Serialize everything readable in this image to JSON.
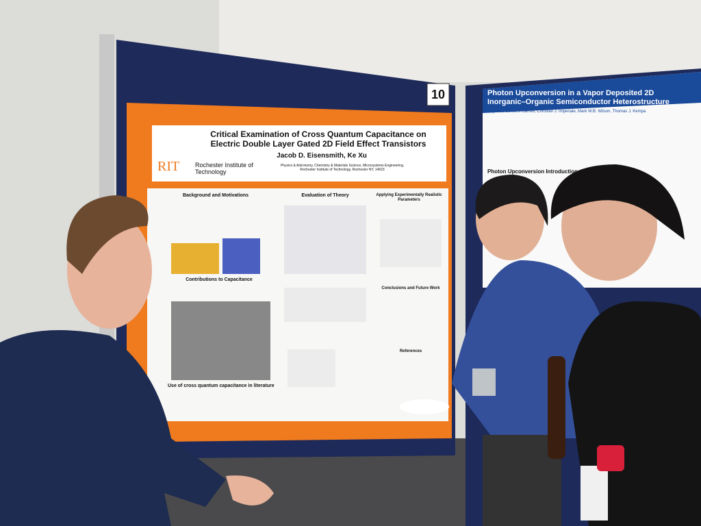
{
  "scene": {
    "board_number": "10",
    "left_poster": {
      "title": "Critical Examination of Cross Quantum Capacitance on Electric Double Layer Gated 2D Field Effect Transistors",
      "authors": "Jacob D. Eisensmith, Ke Xu",
      "logo": "RIT",
      "institution": "Rochester Institute of Technology",
      "affiliation": "Physics & Astronomy, Chemistry & Materials Science, Microsystems Engineering, Rochester Institute of Technology, Rochester NY, 14623",
      "sections": [
        "Background and Motivations",
        "Contributions to Capacitance",
        "Use of cross quantum capacitance in literature",
        "Evaluation of Theory",
        "Applying Experimentally Realistic Parameters",
        "Conclusions and Future Work",
        "References"
      ]
    },
    "right_poster": {
      "title": "Photon Upconversion in a Vapor Deposited 2D Inorganic–Organic Semiconductor Heterostructure",
      "authors": "Reynolds Dziobek-Garrett, Christian J. Imperiale, Mark W.B. Wilson, Thomas J. Kempa",
      "section": "Photon Upconversion Introduction"
    }
  }
}
